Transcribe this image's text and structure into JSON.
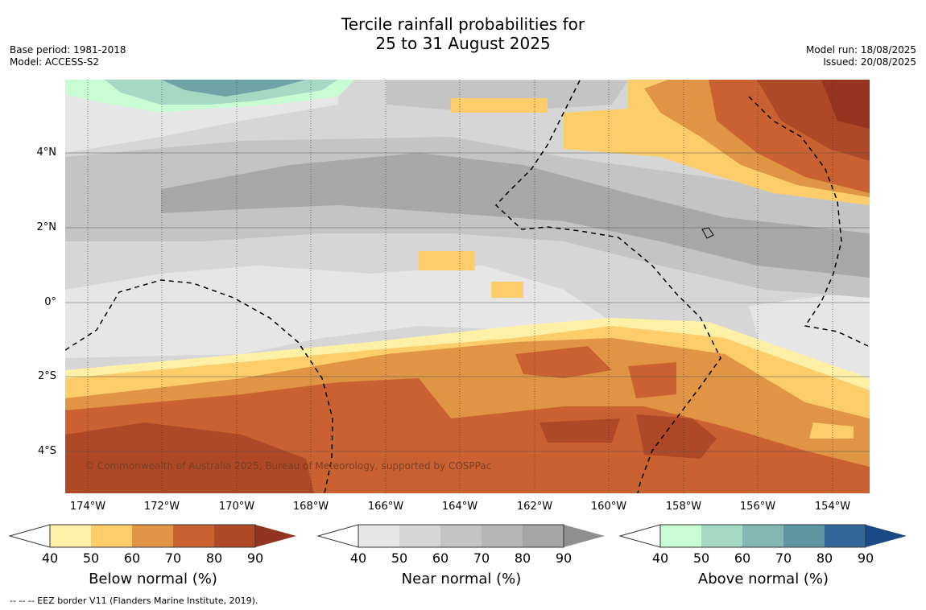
{
  "title": {
    "line1": "Tercile rainfall probabilities for",
    "line2": "25 to 31 August 2025"
  },
  "meta_left": {
    "base_period": "Base period: 1981-2018",
    "model": "Model: ACCESS-S2"
  },
  "meta_right": {
    "model_run": "Model run: 18/08/2025",
    "issued": "Issued: 20/08/2025"
  },
  "map": {
    "lat_labels": [
      "4°N",
      "2°N",
      "0°",
      "2°S",
      "4°S"
    ],
    "lon_labels": [
      "174°W",
      "172°W",
      "170°W",
      "168°W",
      "166°W",
      "164°W",
      "162°W",
      "160°W",
      "158°W",
      "156°W",
      "154°W"
    ],
    "copyright": "© Commonwealth of Australia 2025, Bureau of Meteorology, supported by COSPPac",
    "colors": {
      "below": [
        "#fff0a6",
        "#fdcd6a",
        "#e09444",
        "#cb6130",
        "#af4826",
        "#923520"
      ],
      "near": [
        "#e6e6e6",
        "#d6d6d6",
        "#c4c4c4",
        "#b5b5b5",
        "#a5a5a5",
        "#8f8f8f"
      ],
      "above": [
        "#c8fcd2",
        "#a4d9c3",
        "#82b8b1",
        "#5f94a1",
        "#33679a",
        "#1a4a86"
      ]
    }
  },
  "colorbars": [
    {
      "label": "Below normal (%)",
      "ticks": [
        "40",
        "50",
        "60",
        "70",
        "80",
        "90"
      ]
    },
    {
      "label": "Near normal (%)",
      "ticks": [
        "40",
        "50",
        "60",
        "70",
        "80",
        "90"
      ]
    },
    {
      "label": "Above normal (%)",
      "ticks": [
        "40",
        "50",
        "60",
        "70",
        "80",
        "90"
      ]
    }
  ],
  "footnote": "-- -- -- EEZ border V11 (Flanders Marine Institute, 2019)."
}
